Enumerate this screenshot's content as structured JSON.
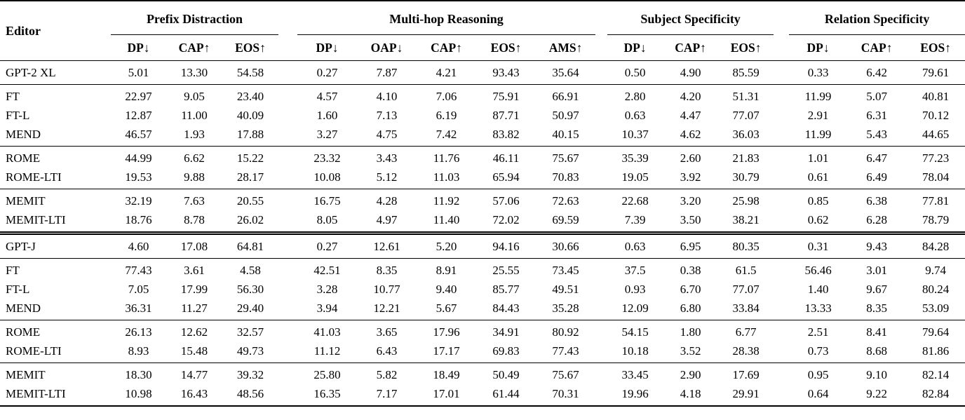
{
  "table": {
    "editor_header": "Editor",
    "groups": [
      {
        "label": "Prefix Distraction",
        "columns": [
          "DP↓",
          "CAP↑",
          "EOS↑"
        ]
      },
      {
        "label": "Multi-hop Reasoning",
        "columns": [
          "DP↓",
          "OAP↓",
          "CAP↑",
          "EOS↑",
          "AMS↑"
        ]
      },
      {
        "label": "Subject Specificity",
        "columns": [
          "DP↓",
          "CAP↑",
          "EOS↑"
        ]
      },
      {
        "label": "Relation Specificity",
        "columns": [
          "DP↓",
          "CAP↑",
          "EOS↑"
        ]
      }
    ],
    "sections": [
      {
        "divider": "none",
        "rows": [
          {
            "editor": "GPT-2 XL",
            "values": [
              "5.01",
              "13.30",
              "54.58",
              "0.27",
              "7.87",
              "4.21",
              "93.43",
              "35.64",
              "0.50",
              "4.90",
              "85.59",
              "0.33",
              "6.42",
              "79.61"
            ]
          }
        ]
      },
      {
        "divider": "single",
        "rows": [
          {
            "editor": "FT",
            "values": [
              "22.97",
              "9.05",
              "23.40",
              "4.57",
              "4.10",
              "7.06",
              "75.91",
              "66.91",
              "2.80",
              "4.20",
              "51.31",
              "11.99",
              "5.07",
              "40.81"
            ]
          },
          {
            "editor": "FT-L",
            "values": [
              "12.87",
              "11.00",
              "40.09",
              "1.60",
              "7.13",
              "6.19",
              "87.71",
              "50.97",
              "0.63",
              "4.47",
              "77.07",
              "2.91",
              "6.31",
              "70.12"
            ]
          },
          {
            "editor": "MEND",
            "values": [
              "46.57",
              "1.93",
              "17.88",
              "3.27",
              "4.75",
              "7.42",
              "83.82",
              "40.15",
              "10.37",
              "4.62",
              "36.03",
              "11.99",
              "5.43",
              "44.65"
            ]
          }
        ]
      },
      {
        "divider": "single",
        "rows": [
          {
            "editor": "ROME",
            "values": [
              "44.99",
              "6.62",
              "15.22",
              "23.32",
              "3.43",
              "11.76",
              "46.11",
              "75.67",
              "35.39",
              "2.60",
              "21.83",
              "1.01",
              "6.47",
              "77.23"
            ]
          },
          {
            "editor": "ROME-LTI",
            "values": [
              "19.53",
              "9.88",
              "28.17",
              "10.08",
              "5.12",
              "11.03",
              "65.94",
              "70.83",
              "19.05",
              "3.92",
              "30.79",
              "0.61",
              "6.49",
              "78.04"
            ]
          }
        ]
      },
      {
        "divider": "single",
        "rows": [
          {
            "editor": "MEMIT",
            "values": [
              "32.19",
              "7.63",
              "20.55",
              "16.75",
              "4.28",
              "11.92",
              "57.06",
              "72.63",
              "22.68",
              "3.20",
              "25.98",
              "0.85",
              "6.38",
              "77.81"
            ]
          },
          {
            "editor": "MEMIT-LTI",
            "values": [
              "18.76",
              "8.78",
              "26.02",
              "8.05",
              "4.97",
              "11.40",
              "72.02",
              "69.59",
              "7.39",
              "3.50",
              "38.21",
              "0.62",
              "6.28",
              "78.79"
            ]
          }
        ]
      },
      {
        "divider": "double",
        "rows": [
          {
            "editor": "GPT-J",
            "values": [
              "4.60",
              "17.08",
              "64.81",
              "0.27",
              "12.61",
              "5.20",
              "94.16",
              "30.66",
              "0.63",
              "6.95",
              "80.35",
              "0.31",
              "9.43",
              "84.28"
            ]
          }
        ]
      },
      {
        "divider": "single",
        "rows": [
          {
            "editor": "FT",
            "values": [
              "77.43",
              "3.61",
              "4.58",
              "42.51",
              "8.35",
              "8.91",
              "25.55",
              "73.45",
              "37.5",
              "0.38",
              "61.5",
              "56.46",
              "3.01",
              "9.74"
            ]
          },
          {
            "editor": "FT-L",
            "values": [
              "7.05",
              "17.99",
              "56.30",
              "3.28",
              "10.77",
              "9.40",
              "85.77",
              "49.51",
              "0.93",
              "6.70",
              "77.07",
              "1.40",
              "9.67",
              "80.24"
            ]
          },
          {
            "editor": "MEND",
            "values": [
              "36.31",
              "11.27",
              "29.40",
              "3.94",
              "12.21",
              "5.67",
              "84.43",
              "35.28",
              "12.09",
              "6.80",
              "33.84",
              "13.33",
              "8.35",
              "53.09"
            ]
          }
        ]
      },
      {
        "divider": "single",
        "rows": [
          {
            "editor": "ROME",
            "values": [
              "26.13",
              "12.62",
              "32.57",
              "41.03",
              "3.65",
              "17.96",
              "34.91",
              "80.92",
              "54.15",
              "1.80",
              "6.77",
              "2.51",
              "8.41",
              "79.64"
            ]
          },
          {
            "editor": "ROME-LTI",
            "values": [
              "8.93",
              "15.48",
              "49.73",
              "11.12",
              "6.43",
              "17.17",
              "69.83",
              "77.43",
              "10.18",
              "3.52",
              "28.38",
              "0.73",
              "8.68",
              "81.86"
            ]
          }
        ]
      },
      {
        "divider": "single",
        "rows": [
          {
            "editor": "MEMIT",
            "values": [
              "18.30",
              "14.77",
              "39.32",
              "25.80",
              "5.82",
              "18.49",
              "50.49",
              "75.67",
              "33.45",
              "2.90",
              "17.69",
              "0.95",
              "9.10",
              "82.14"
            ]
          },
          {
            "editor": "MEMIT-LTI",
            "values": [
              "10.98",
              "16.43",
              "48.56",
              "16.35",
              "7.17",
              "17.01",
              "61.44",
              "70.31",
              "19.96",
              "4.18",
              "29.91",
              "0.64",
              "9.22",
              "82.84"
            ]
          }
        ]
      }
    ]
  }
}
